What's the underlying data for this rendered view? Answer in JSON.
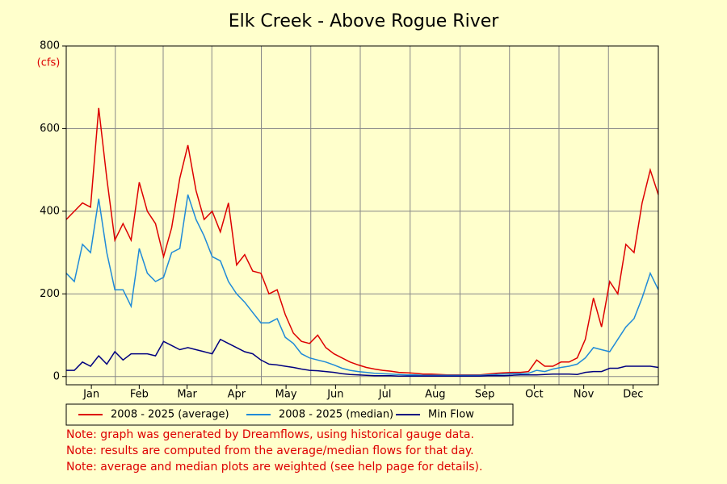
{
  "chart_data": {
    "type": "line",
    "title": "Elk Creek - Above Rogue River",
    "y_label": "(cfs)",
    "x": [
      0,
      5,
      10,
      15,
      20,
      25,
      30,
      35,
      40,
      45,
      50,
      55,
      60,
      65,
      70,
      75,
      80,
      85,
      90,
      95,
      100,
      105,
      110,
      115,
      120,
      125,
      130,
      135,
      140,
      145,
      150,
      155,
      160,
      165,
      170,
      175,
      180,
      185,
      190,
      195,
      200,
      205,
      210,
      215,
      220,
      225,
      230,
      235,
      240,
      245,
      250,
      255,
      260,
      265,
      270,
      275,
      280,
      285,
      290,
      295,
      300,
      305,
      310,
      315,
      320,
      325,
      330,
      335,
      340,
      345,
      350,
      355,
      360,
      365
    ],
    "xlim": [
      0,
      365
    ],
    "xticks": [
      {
        "value": 15.5,
        "label": "Jan"
      },
      {
        "value": 45,
        "label": "Feb"
      },
      {
        "value": 74.5,
        "label": "Mar"
      },
      {
        "value": 105,
        "label": "Apr"
      },
      {
        "value": 135.5,
        "label": "May"
      },
      {
        "value": 166,
        "label": "Jun"
      },
      {
        "value": 196.5,
        "label": "Jul"
      },
      {
        "value": 227.5,
        "label": "Aug"
      },
      {
        "value": 258,
        "label": "Sep"
      },
      {
        "value": 288.5,
        "label": "Oct"
      },
      {
        "value": 319,
        "label": "Nov"
      },
      {
        "value": 349.5,
        "label": "Dec"
      }
    ],
    "ylim": [
      -20,
      800
    ],
    "yticks": [
      0,
      200,
      400,
      600,
      800
    ],
    "grid": true,
    "legend": "below",
    "series": [
      {
        "name": "2008 - 2025 (average)",
        "color": "#dd0000",
        "values": [
          380,
          400,
          420,
          410,
          650,
          480,
          330,
          370,
          330,
          470,
          400,
          370,
          290,
          360,
          480,
          560,
          450,
          380,
          400,
          350,
          420,
          270,
          295,
          255,
          250,
          200,
          210,
          150,
          105,
          85,
          80,
          100,
          70,
          55,
          45,
          35,
          28,
          22,
          18,
          15,
          13,
          10,
          9,
          8,
          6,
          6,
          5,
          4,
          4,
          4,
          4,
          4,
          6,
          8,
          9,
          10,
          10,
          12,
          40,
          25,
          25,
          35,
          35,
          45,
          90,
          190,
          120,
          230,
          200,
          320,
          300,
          420,
          500,
          440
        ]
      },
      {
        "name": "2008 - 2025 (median)",
        "color": "#1f8ad8",
        "values": [
          250,
          230,
          320,
          300,
          430,
          300,
          210,
          210,
          170,
          310,
          250,
          230,
          240,
          300,
          310,
          440,
          380,
          340,
          290,
          280,
          230,
          200,
          180,
          155,
          130,
          130,
          140,
          95,
          80,
          55,
          45,
          40,
          35,
          28,
          20,
          15,
          12,
          10,
          8,
          7,
          6,
          5,
          4,
          4,
          3,
          3,
          3,
          3,
          3,
          3,
          3,
          3,
          4,
          5,
          6,
          7,
          7,
          8,
          15,
          12,
          18,
          22,
          25,
          30,
          45,
          70,
          65,
          60,
          90,
          120,
          140,
          190,
          250,
          210
        ]
      },
      {
        "name": "Min Flow",
        "color": "#000080",
        "values": [
          15,
          15,
          35,
          25,
          50,
          30,
          60,
          40,
          55,
          55,
          55,
          50,
          85,
          75,
          65,
          70,
          65,
          60,
          55,
          90,
          80,
          70,
          60,
          55,
          40,
          30,
          28,
          25,
          22,
          18,
          15,
          14,
          12,
          10,
          7,
          5,
          4,
          3,
          2,
          2,
          2,
          1,
          1,
          1,
          1,
          1,
          1,
          1,
          1,
          1,
          1,
          1,
          2,
          2,
          2,
          3,
          4,
          4,
          4,
          5,
          6,
          6,
          6,
          5,
          10,
          12,
          12,
          20,
          20,
          25,
          25,
          25,
          25,
          22
        ]
      }
    ],
    "notes": [
      "Note: graph was generated by Dreamflows, using historical gauge data.",
      "Note: results are computed from the average/median flows for that day.",
      "Note: average and median plots are weighted (see help page for details)."
    ]
  }
}
